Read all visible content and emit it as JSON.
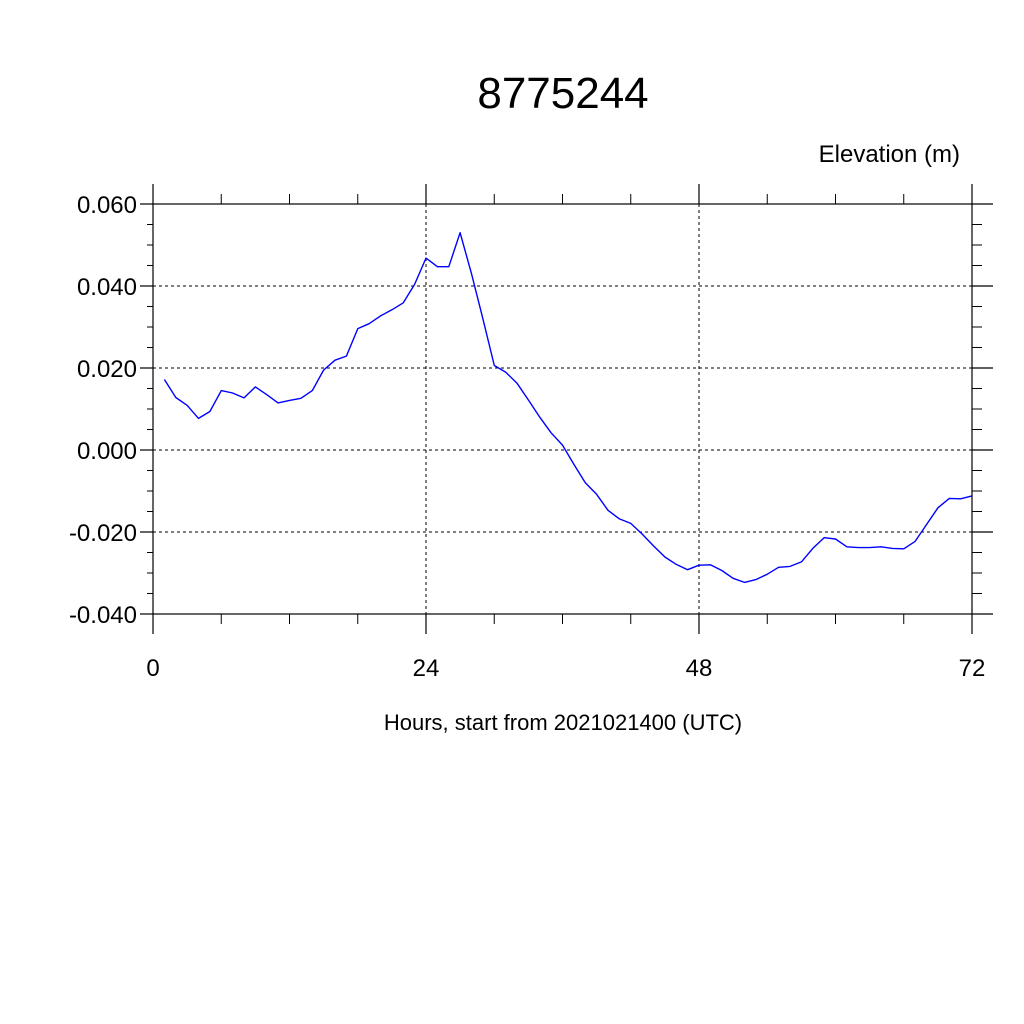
{
  "chart_data": {
    "type": "line",
    "title": "8775244",
    "ylabel": "Elevation (m)",
    "xlabel": "Hours, start from 2021021400 (UTC)",
    "xlim": [
      0,
      72
    ],
    "ylim": [
      -0.04,
      0.06
    ],
    "x_ticks": [
      0,
      24,
      48,
      72
    ],
    "x_tick_labels": [
      "0",
      "24",
      "48",
      "72"
    ],
    "y_ticks": [
      -0.04,
      -0.02,
      0.0,
      0.02,
      0.04,
      0.06
    ],
    "y_tick_labels": [
      "-0.040",
      "-0.020",
      "0.000",
      "0.020",
      "0.040",
      "0.060"
    ],
    "grid": true,
    "series": [
      {
        "color": "#0000ff",
        "x": [
          1,
          2,
          3,
          4,
          5,
          6,
          7,
          8,
          9,
          10,
          11,
          12,
          13,
          14,
          15,
          16,
          17,
          18,
          19,
          20,
          21,
          22,
          23,
          24,
          25,
          26,
          27,
          28,
          29,
          30,
          31,
          32,
          33,
          34,
          35,
          36,
          37,
          38,
          39,
          40,
          41,
          42,
          43,
          44,
          45,
          46,
          47,
          48,
          49,
          50,
          51,
          52,
          53,
          54,
          55,
          56,
          57,
          58,
          59,
          60,
          61,
          62,
          63,
          64,
          65,
          66,
          67,
          68,
          69,
          70,
          71,
          72
        ],
        "y": [
          0.0172,
          0.0128,
          0.0109,
          0.0077,
          0.0094,
          0.0145,
          0.0139,
          0.0127,
          0.0154,
          0.0135,
          0.0115,
          0.0121,
          0.0126,
          0.0145,
          0.0195,
          0.0219,
          0.0229,
          0.0296,
          0.0308,
          0.0327,
          0.0342,
          0.0359,
          0.0404,
          0.0468,
          0.0447,
          0.0447,
          0.053,
          0.043,
          0.032,
          0.0206,
          0.019,
          0.0163,
          0.0122,
          0.008,
          0.0042,
          0.0012,
          -0.0035,
          -0.008,
          -0.0108,
          -0.0147,
          -0.0168,
          -0.0179,
          -0.0205,
          -0.0234,
          -0.0261,
          -0.0279,
          -0.0292,
          -0.0281,
          -0.028,
          -0.0294,
          -0.0313,
          -0.0323,
          -0.0316,
          -0.0303,
          -0.0286,
          -0.0284,
          -0.0273,
          -0.024,
          -0.0214,
          -0.0217,
          -0.0236,
          -0.0238,
          -0.0238,
          -0.0236,
          -0.024,
          -0.0241,
          -0.0223,
          -0.0182,
          -0.0141,
          -0.0118,
          -0.0119,
          -0.0112
        ]
      }
    ]
  }
}
